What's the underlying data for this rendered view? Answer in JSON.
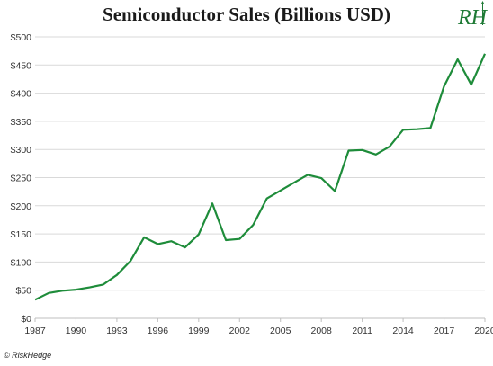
{
  "chart_data": {
    "type": "line",
    "title": "Semiconductor Sales (Billions USD)",
    "xlabel": "",
    "ylabel": "",
    "xlim": [
      1987,
      2020
    ],
    "ylim": [
      0,
      500
    ],
    "y_ticks": [
      0,
      50,
      100,
      150,
      200,
      250,
      300,
      350,
      400,
      450,
      500
    ],
    "y_tick_labels": [
      "$0",
      "$50",
      "$100",
      "$150",
      "$200",
      "$250",
      "$300",
      "$350",
      "$400",
      "$450",
      "$500"
    ],
    "x_ticks": [
      1987,
      1990,
      1993,
      1996,
      1999,
      2002,
      2005,
      2008,
      2011,
      2014,
      2017,
      2020
    ],
    "x_tick_labels": [
      "1987",
      "1990",
      "1993",
      "1996",
      "1999",
      "2002",
      "2005",
      "2008",
      "2011",
      "2014",
      "2017",
      "2020"
    ],
    "grid": true,
    "line_color": "#1e8c3a",
    "series": [
      {
        "x": [
          1987,
          1988,
          1989,
          1990,
          1991,
          1992,
          1993,
          1994,
          1995,
          1996,
          1997,
          1998,
          1999,
          2000,
          2001,
          2002,
          2003,
          2004,
          2005,
          2006,
          2007,
          2008,
          2009,
          2010,
          2011,
          2012,
          2013,
          2014,
          2015,
          2016,
          2017,
          2018,
          2019,
          2020
        ],
        "values": [
          33,
          45,
          49,
          51,
          55,
          60,
          77,
          102,
          144,
          132,
          137,
          126,
          149,
          204,
          139,
          141,
          166,
          213,
          227,
          241,
          255,
          249,
          226,
          298,
          299,
          291,
          305,
          335,
          336,
          338,
          412,
          460,
          415,
          470
        ]
      }
    ]
  },
  "logo": {
    "text": "RH"
  },
  "copyright": "© RiskHedge"
}
